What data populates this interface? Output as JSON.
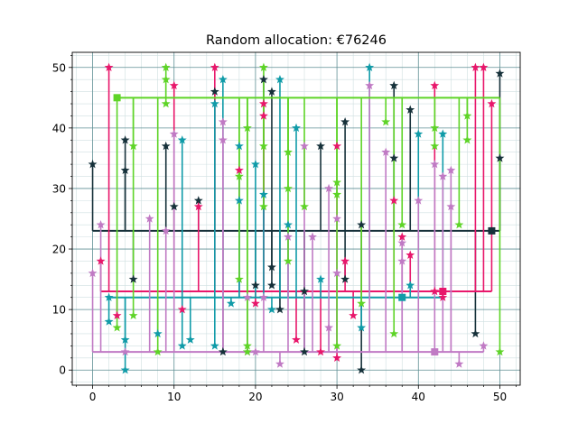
{
  "chart_data": {
    "type": "scatter",
    "title": "Random allocation: €76246",
    "xlabel": "",
    "ylabel": "",
    "xlim": [
      -2.5,
      52.5
    ],
    "ylim": [
      -2.5,
      52.5
    ],
    "xticks": [
      0,
      10,
      20,
      30,
      40,
      50
    ],
    "yticks": [
      0,
      10,
      20,
      30,
      40,
      50
    ],
    "x_tick_labels": [
      "0",
      "10",
      "20",
      "30",
      "40",
      "50"
    ],
    "y_tick_labels": [
      "0",
      "10",
      "20",
      "30",
      "40",
      "50"
    ],
    "grid": true,
    "minor_ticks": true,
    "legend": "none",
    "grid_colors": {
      "major": "#5f8f94",
      "minor": "#cfdfe0"
    },
    "series": [
      {
        "color": "#16313a",
        "hub": [
          49,
          23
        ],
        "trunk_y": 23,
        "points": [
          [
            0,
            34
          ],
          [
            4,
            38
          ],
          [
            4,
            33
          ],
          [
            5,
            15
          ],
          [
            9,
            37
          ],
          [
            10,
            27
          ],
          [
            13,
            28
          ],
          [
            15,
            46
          ],
          [
            16,
            3
          ],
          [
            20,
            14
          ],
          [
            21,
            48
          ],
          [
            22,
            46
          ],
          [
            22,
            17
          ],
          [
            22,
            14
          ],
          [
            23,
            10
          ],
          [
            26,
            13
          ],
          [
            26,
            3
          ],
          [
            28,
            37
          ],
          [
            31,
            41
          ],
          [
            31,
            15
          ],
          [
            33,
            24
          ],
          [
            33,
            0
          ],
          [
            37,
            47
          ],
          [
            37,
            35
          ],
          [
            39,
            43
          ],
          [
            47,
            6
          ],
          [
            50,
            49
          ],
          [
            50,
            35
          ]
        ]
      },
      {
        "color": "#e8176b",
        "hub": [
          43,
          13
        ],
        "trunk_y": 13,
        "points": [
          [
            1,
            18
          ],
          [
            2,
            50
          ],
          [
            3,
            9
          ],
          [
            10,
            47
          ],
          [
            11,
            10
          ],
          [
            13,
            27
          ],
          [
            15,
            50
          ],
          [
            18,
            33
          ],
          [
            20,
            11
          ],
          [
            21,
            44
          ],
          [
            21,
            42
          ],
          [
            25,
            5
          ],
          [
            28,
            3
          ],
          [
            30,
            37
          ],
          [
            30,
            2
          ],
          [
            31,
            18
          ],
          [
            32,
            9
          ],
          [
            37,
            28
          ],
          [
            38,
            22
          ],
          [
            39,
            19
          ],
          [
            42,
            47
          ],
          [
            42,
            13
          ],
          [
            43,
            12
          ],
          [
            47,
            50
          ],
          [
            48,
            50
          ],
          [
            49,
            44
          ]
        ]
      },
      {
        "color": "#109ba8",
        "hub": [
          38,
          12
        ],
        "trunk_y": 12,
        "points": [
          [
            2,
            12
          ],
          [
            2,
            8
          ],
          [
            4,
            5
          ],
          [
            4,
            0
          ],
          [
            8,
            6
          ],
          [
            11,
            38
          ],
          [
            11,
            4
          ],
          [
            12,
            5
          ],
          [
            15,
            44
          ],
          [
            15,
            4
          ],
          [
            16,
            48
          ],
          [
            17,
            11
          ],
          [
            18,
            37
          ],
          [
            18,
            28
          ],
          [
            20,
            34
          ],
          [
            21,
            29
          ],
          [
            22,
            10
          ],
          [
            23,
            48
          ],
          [
            24,
            24
          ],
          [
            25,
            40
          ],
          [
            28,
            15
          ],
          [
            33,
            7
          ],
          [
            34,
            50
          ],
          [
            39,
            14
          ],
          [
            40,
            39
          ],
          [
            43,
            39
          ]
        ]
      },
      {
        "color": "#c07ac4",
        "hub": [
          42,
          3
        ],
        "trunk_y": 3,
        "points": [
          [
            0,
            16
          ],
          [
            1,
            24
          ],
          [
            4,
            3
          ],
          [
            7,
            25
          ],
          [
            9,
            23
          ],
          [
            10,
            39
          ],
          [
            16,
            41
          ],
          [
            16,
            38
          ],
          [
            19,
            12
          ],
          [
            19,
            3
          ],
          [
            20,
            3
          ],
          [
            21,
            12
          ],
          [
            23,
            1
          ],
          [
            24,
            22
          ],
          [
            26,
            37
          ],
          [
            27,
            22
          ],
          [
            29,
            30
          ],
          [
            29,
            7
          ],
          [
            30,
            25
          ],
          [
            30,
            16
          ],
          [
            34,
            47
          ],
          [
            36,
            36
          ],
          [
            38,
            21
          ],
          [
            38,
            18
          ],
          [
            40,
            28
          ],
          [
            42,
            34
          ],
          [
            43,
            32
          ],
          [
            44,
            33
          ],
          [
            44,
            27
          ],
          [
            45,
            1
          ],
          [
            48,
            4
          ]
        ]
      },
      {
        "color": "#5ed427",
        "hub": [
          3,
          45
        ],
        "trunk_y": 45,
        "points": [
          [
            3,
            7
          ],
          [
            5,
            37
          ],
          [
            5,
            9
          ],
          [
            8,
            3
          ],
          [
            9,
            50
          ],
          [
            9,
            48
          ],
          [
            9,
            44
          ],
          [
            18,
            15
          ],
          [
            18,
            32
          ],
          [
            19,
            40
          ],
          [
            19,
            4
          ],
          [
            19,
            3
          ],
          [
            21,
            50
          ],
          [
            21,
            37
          ],
          [
            21,
            27
          ],
          [
            24,
            36
          ],
          [
            24,
            30
          ],
          [
            24,
            18
          ],
          [
            26,
            27
          ],
          [
            30,
            29
          ],
          [
            30,
            31
          ],
          [
            30,
            4
          ],
          [
            33,
            11
          ],
          [
            36,
            41
          ],
          [
            37,
            6
          ],
          [
            38,
            24
          ],
          [
            42,
            40
          ],
          [
            42,
            37
          ],
          [
            45,
            24
          ],
          [
            46,
            42
          ],
          [
            46,
            38
          ],
          [
            50,
            3
          ]
        ]
      }
    ]
  }
}
